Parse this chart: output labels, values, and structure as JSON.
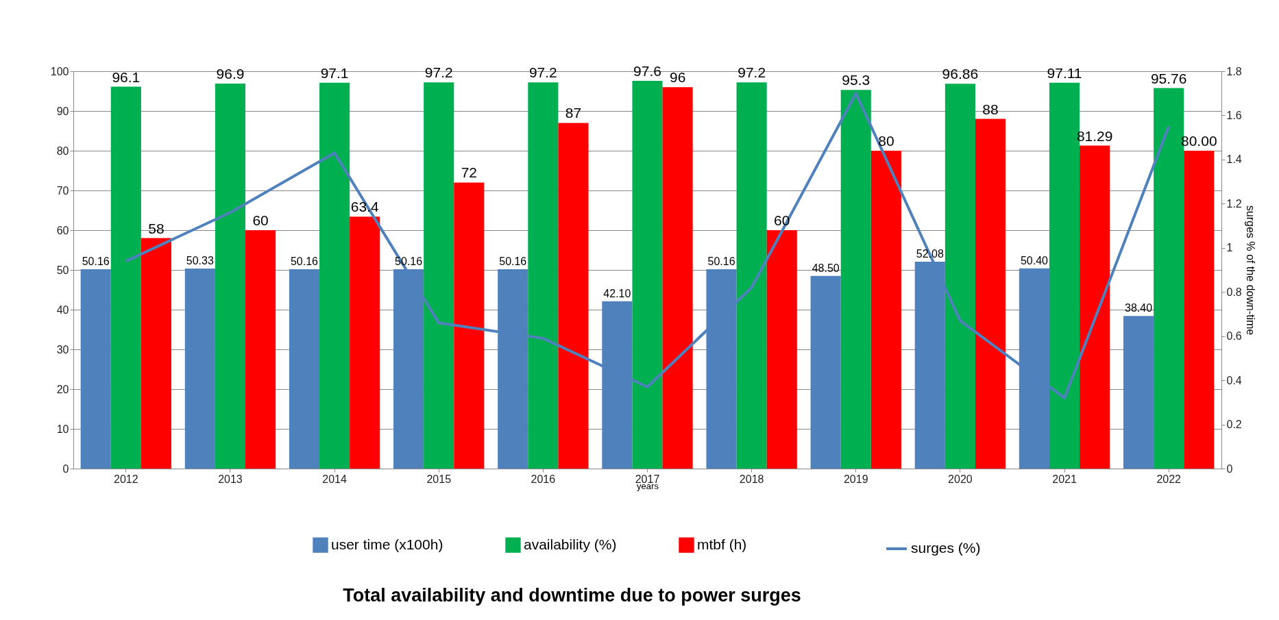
{
  "chart_data": {
    "type": "bar",
    "xlabel": "years",
    "y2label": "surges % of the down-time",
    "categories": [
      "2012",
      "2013",
      "2014",
      "2015",
      "2016",
      "2017",
      "2018",
      "2019",
      "2020",
      "2021",
      "2022"
    ],
    "series": [
      {
        "name": "user time (x100h)",
        "color": "#4f81bd",
        "values": [
          50.16,
          50.33,
          50.16,
          50.16,
          50.16,
          42.1,
          50.16,
          48.5,
          52.08,
          50.4,
          38.4
        ],
        "value_labels": [
          "50.16",
          "50.33",
          "50.16",
          "50.16",
          "50.16",
          "42.10",
          "50.16",
          "48.50",
          "52.08",
          "50.40",
          "38.40"
        ]
      },
      {
        "name": "availability (%)",
        "color": "#00b050",
        "values": [
          96.1,
          96.9,
          97.1,
          97.2,
          97.2,
          97.6,
          97.2,
          95.3,
          96.86,
          97.11,
          95.76
        ],
        "value_labels": [
          "96.1",
          "96.9",
          "97.1",
          "97.2",
          "97.2",
          "97.6",
          "97.2",
          "95.3",
          "96.86",
          "97.11",
          "95.76"
        ]
      },
      {
        "name": "mtbf (h)",
        "color": "#ff0000",
        "values": [
          58,
          60,
          63.4,
          72,
          87,
          96,
          60,
          80,
          88,
          81.29,
          80.0
        ],
        "value_labels": [
          "58",
          "60",
          "63.4",
          "72",
          "87",
          "96",
          "60",
          "80",
          "88",
          "81.29",
          "80.00"
        ]
      },
      {
        "name": "surges (%)",
        "type": "line",
        "axis": "y2",
        "color": "#4f81bd",
        "values": [
          0.94,
          1.16,
          1.43,
          0.66,
          0.59,
          0.37,
          0.82,
          1.7,
          0.67,
          0.32,
          1.55
        ]
      }
    ],
    "ylim": [
      0,
      100
    ],
    "yticks": [
      0,
      10,
      20,
      30,
      40,
      50,
      60,
      70,
      80,
      90,
      100
    ],
    "y2lim": [
      0,
      1.8
    ],
    "y2ticks": [
      0,
      0.2,
      0.4,
      0.6,
      0.8,
      1,
      1.2,
      1.4,
      1.6,
      1.8
    ],
    "grid": "y",
    "legend": "bottom",
    "line_style": "solid",
    "marker": "none",
    "annotations": [
      "Total availability and  downtime due to power surges"
    ]
  }
}
